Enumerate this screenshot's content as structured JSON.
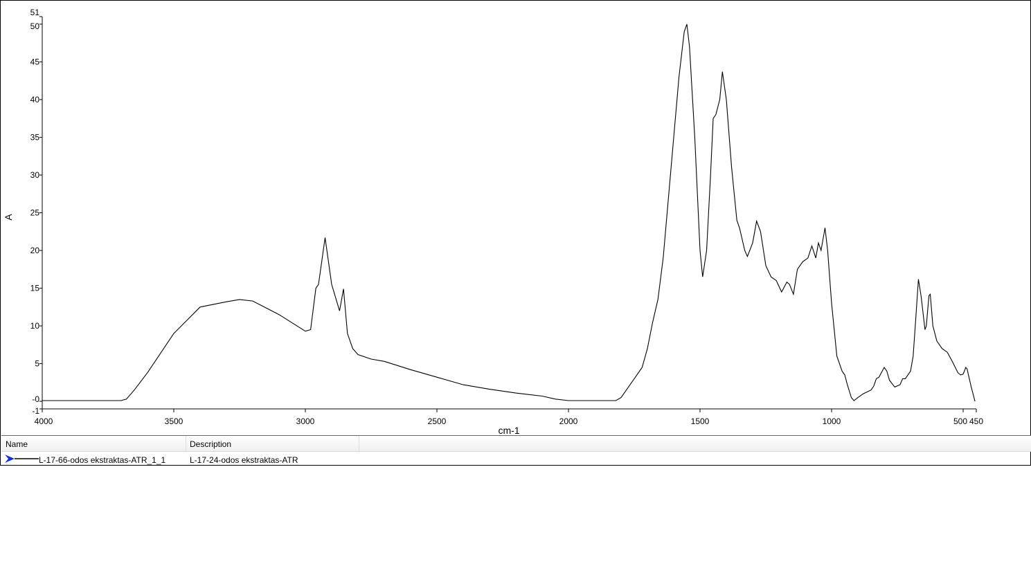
{
  "chart_data": {
    "type": "line",
    "xlabel": "cm-1",
    "ylabel": "A",
    "xlim": [
      4000,
      450
    ],
    "ylim": [
      -1,
      51
    ],
    "x_reversed": true,
    "grid": false,
    "x_ticks": [
      4000,
      3500,
      3000,
      2500,
      2000,
      1500,
      1000,
      500,
      450
    ],
    "y_ticks": [
      -1,
      0,
      5,
      10,
      15,
      20,
      25,
      30,
      35,
      40,
      45,
      50,
      51
    ],
    "y_tick_labels": [
      "-1",
      "-0",
      "5",
      "10",
      "15",
      "20",
      "25",
      "30",
      "35",
      "40",
      "45",
      "50",
      "51"
    ],
    "line_color": "#000000",
    "series": [
      {
        "name": "L-17-66-odos ekstraktas-ATR_1_1",
        "x": [
          4000,
          3700,
          3680,
          3650,
          3600,
          3500,
          3400,
          3300,
          3250,
          3200,
          3100,
          3000,
          2980,
          2960,
          2950,
          2925,
          2900,
          2870,
          2855,
          2840,
          2820,
          2800,
          2750,
          2700,
          2600,
          2500,
          2400,
          2300,
          2200,
          2100,
          2050,
          2000,
          1900,
          1820,
          1800,
          1780,
          1750,
          1720,
          1700,
          1680,
          1660,
          1640,
          1620,
          1600,
          1580,
          1560,
          1550,
          1540,
          1520,
          1500,
          1490,
          1475,
          1460,
          1450,
          1440,
          1425,
          1415,
          1400,
          1380,
          1360,
          1350,
          1330,
          1320,
          1300,
          1285,
          1270,
          1250,
          1230,
          1210,
          1190,
          1170,
          1160,
          1145,
          1130,
          1110,
          1090,
          1075,
          1060,
          1050,
          1040,
          1025,
          1015,
          1000,
          980,
          960,
          950,
          940,
          925,
          915,
          900,
          880,
          850,
          840,
          830,
          820,
          800,
          790,
          780,
          760,
          740,
          730,
          720,
          700,
          690,
          680,
          670,
          660,
          650,
          645,
          640,
          630,
          625,
          615,
          600,
          580,
          560,
          540,
          520,
          510,
          500,
          490,
          485,
          470,
          455
        ],
        "y": [
          0.1,
          0.1,
          0.3,
          1.5,
          3.8,
          9,
          12.5,
          13.2,
          13.5,
          13.3,
          11.5,
          9.3,
          9.5,
          15,
          15.5,
          21.7,
          15.5,
          12,
          14.9,
          9,
          7,
          6.2,
          5.6,
          5.3,
          4.2,
          3.2,
          2.2,
          1.6,
          1.1,
          0.7,
          0.3,
          0.1,
          0.1,
          0.1,
          0.5,
          1.5,
          3,
          4.5,
          7,
          10.5,
          13.5,
          19,
          27,
          35,
          43,
          49,
          50,
          47,
          35,
          20,
          16.5,
          20,
          30,
          37.5,
          38,
          40,
          43.7,
          40,
          31,
          24,
          23,
          20,
          19.2,
          21,
          23.9,
          22.5,
          18,
          16.5,
          16,
          14.5,
          15.8,
          15.5,
          14.2,
          17.5,
          18.5,
          19,
          20.6,
          19,
          21,
          20,
          23,
          20,
          13,
          6,
          4,
          3.5,
          2.2,
          0.5,
          0.1,
          0.5,
          1,
          1.5,
          2,
          3,
          3.2,
          4.5,
          4,
          2.8,
          1.9,
          2.2,
          3,
          3,
          4,
          6,
          11,
          16.2,
          14,
          11,
          9.5,
          10,
          14,
          14.2,
          10,
          8,
          7,
          6.5,
          5.2,
          3.8,
          3.5,
          3.6,
          4.5,
          4.3,
          2,
          0
        ]
      }
    ]
  },
  "legend": {
    "columns": [
      "Name",
      "Description"
    ],
    "rows": [
      {
        "name": "L-17-66-odos ekstraktas-ATR_1_1",
        "description": "L-17-24-odos ekstraktas-ATR",
        "icon": "arrow-icon",
        "icon_color": "#1a2fd0"
      }
    ]
  }
}
